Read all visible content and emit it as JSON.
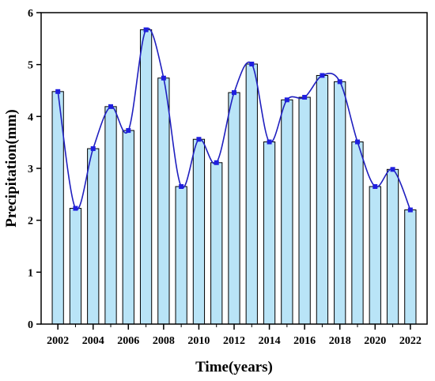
{
  "chart_data": {
    "type": "bar",
    "xlabel": "Time(years)",
    "ylabel": "Precipitation(mm)",
    "ylim": [
      0,
      6
    ],
    "yticks": [
      "0",
      "1",
      "2",
      "3",
      "4",
      "5",
      "6"
    ],
    "xtick_labels": [
      "2002",
      "2004",
      "2006",
      "2008",
      "2010",
      "2012",
      "2014",
      "2016",
      "2018",
      "2020",
      "2022"
    ],
    "categories": [
      2002,
      2003,
      2004,
      2005,
      2006,
      2007,
      2008,
      2009,
      2010,
      2011,
      2012,
      2013,
      2014,
      2015,
      2016,
      2017,
      2018,
      2019,
      2020,
      2021,
      2022
    ],
    "values": [
      4.48,
      2.23,
      3.38,
      4.19,
      3.73,
      5.67,
      4.74,
      2.65,
      3.56,
      3.11,
      4.46,
      5.01,
      3.51,
      4.32,
      4.37,
      4.79,
      4.67,
      3.51,
      2.65,
      2.98,
      2.2
    ],
    "overlay": "smoothed line with markers",
    "grid": false,
    "legend": "none",
    "colors": {
      "bar_fill": "#b9e4f7",
      "bar_stroke": "#000000",
      "line": "#1f1fbf",
      "marker": "#1f1fdf"
    }
  }
}
